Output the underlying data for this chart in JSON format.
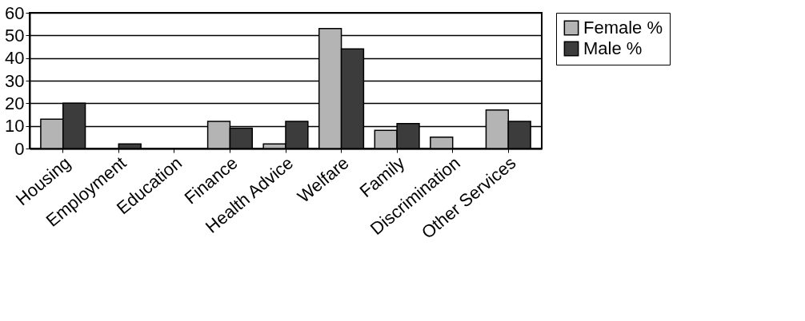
{
  "chart_data": {
    "type": "bar",
    "categories": [
      "Housing",
      "Employment",
      "Education",
      "Finance",
      "Health Advice",
      "Welfare",
      "Family",
      "Discrimination",
      "Other Services"
    ],
    "series": [
      {
        "name": "Female %",
        "color": "#b4b4b4",
        "values": [
          13,
          0,
          0,
          12,
          2,
          53,
          8,
          5,
          17
        ]
      },
      {
        "name": "Male %",
        "color": "#3c3c3c",
        "values": [
          20,
          2,
          0,
          9,
          12,
          44,
          11,
          0,
          12
        ]
      }
    ],
    "ylim": [
      0,
      60
    ],
    "yticks": [
      0,
      10,
      20,
      30,
      40,
      50,
      60
    ],
    "grid": "y",
    "legend": "right"
  }
}
